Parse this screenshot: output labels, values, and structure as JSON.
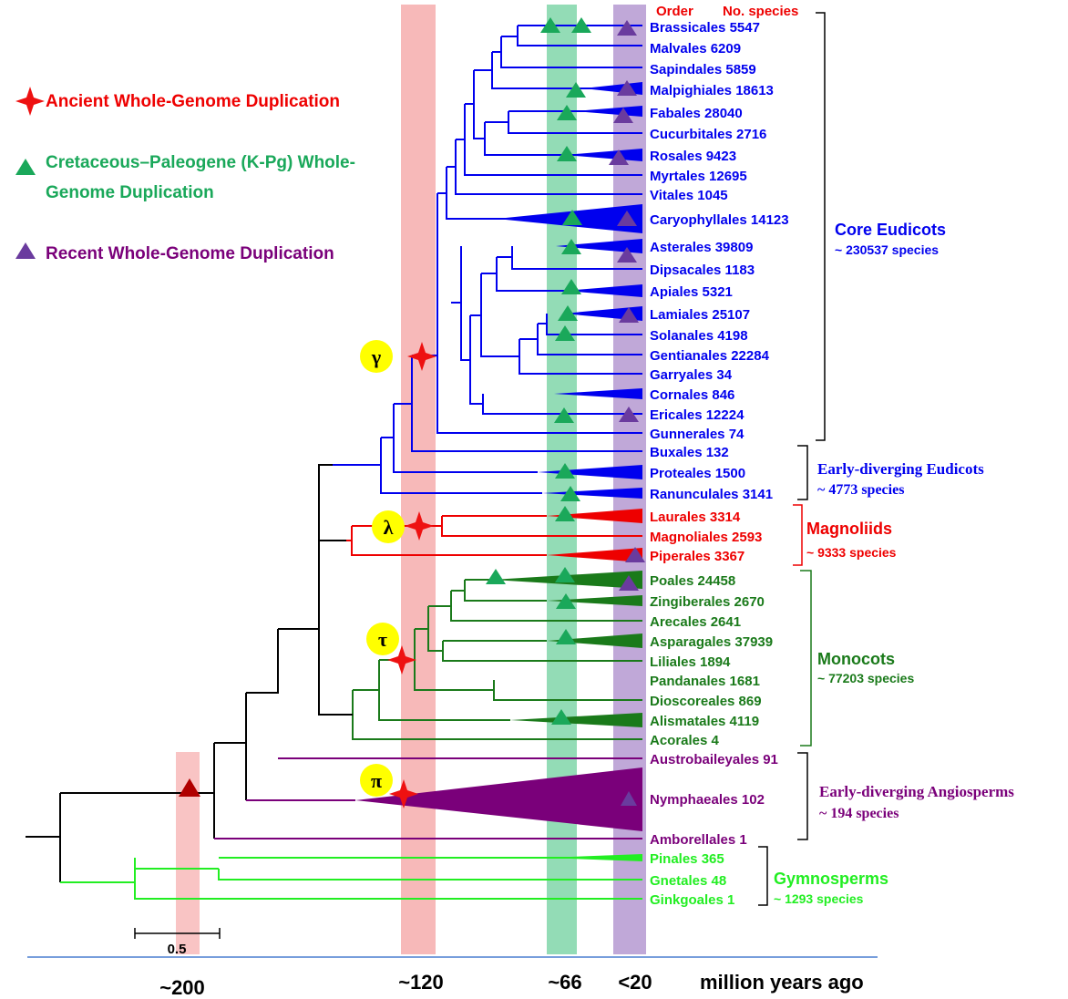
{
  "legend": {
    "ancient": "Ancient Whole-Genome Duplication",
    "kpg_line1": "Cretaceous–Paleogene (K-Pg)  Whole-",
    "kpg_line2": "Genome Duplication",
    "recent": "Recent Whole-Genome Duplication"
  },
  "header": {
    "order": "Order",
    "no_species": "No. species"
  },
  "wgd_events": {
    "gamma": "γ",
    "lambda": "λ",
    "tau": "τ",
    "pi": "π"
  },
  "groups": {
    "core_eudicots": {
      "name": "Core Eudicots",
      "count": "~ 230537 species"
    },
    "early_eudicots": {
      "name": "Early-diverging Eudicots",
      "count": "~ 4773  species"
    },
    "magnoliids": {
      "name": "Magnoliids",
      "count": "~ 9333 species"
    },
    "monocots": {
      "name": "Monocots",
      "count": "~ 77203  species"
    },
    "early_angio": {
      "name": "Early-diverging Angiosperms",
      "count": "~ 194 species"
    },
    "gymnosperms": {
      "name": "Gymnosperms",
      "count": "~ 1293  species"
    }
  },
  "taxa": [
    "Brassicales 5547",
    "Malvales 6209",
    "Sapindales 5859",
    "Malpighiales 18613",
    "Fabales 28040",
    "Cucurbitales 2716",
    "Rosales 9423",
    "Myrtales 12695",
    "Vitales 1045",
    "Caryophyllales 14123",
    "Asterales 39809",
    "Dipsacales 1183",
    "Apiales 5321",
    "Lamiales 25107",
    "Solanales 4198",
    "Gentianales 22284",
    "Garryales 34",
    "Cornales 846",
    "Ericales 12224",
    "Gunnerales 74",
    "Buxales 132",
    "Proteales 1500",
    "Ranunculales 3141",
    "Laurales 3314",
    "Magnoliales 2593",
    "Piperales 3367",
    "Poales 24458",
    "Zingiberales 2670",
    "Arecales 2641",
    "Asparagales 37939",
    "Liliales 1894",
    "Pandanales 1681",
    "Dioscoreales 869",
    "Alismatales 4119",
    "Acorales 4",
    "Austrobaileyales 91",
    "Nymphaeales 102",
    "Amborellales 1",
    "Pinales 365",
    "Gnetales 48",
    "Ginkgoales 1"
  ],
  "time_axis": {
    "ticks": [
      "~200",
      "~120",
      "~66",
      "<20"
    ],
    "unit": "million years ago",
    "scale_bar": "0.5"
  },
  "colors": {
    "eudicot": "#0000ee",
    "magnoliid": "#ee0000",
    "monocot": "#1a7a1a",
    "early_angio": "#7a007a",
    "gymnosperm": "#22ee22",
    "kpg_band": "#86d9ad",
    "recent_band": "#b8a2d2",
    "ancient_band": "#f4a7a7"
  }
}
